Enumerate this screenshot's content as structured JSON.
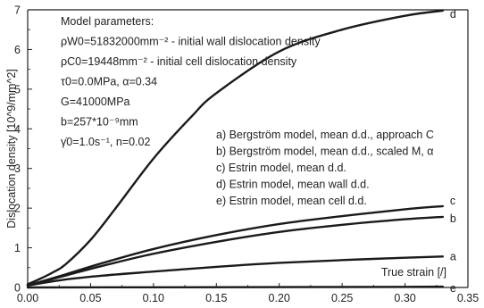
{
  "chart_data": {
    "type": "line",
    "xlabel": "True strain [/]",
    "ylabel": "Dislocation density [10^9/mm^2]",
    "xlim": [
      0.0,
      0.35
    ],
    "ylim": [
      0,
      7
    ],
    "x_ticks": [
      "0.00",
      "0.05",
      "0.10",
      "0.15",
      "0.20",
      "0.25",
      "0.30",
      "0.35"
    ],
    "y_ticks": [
      "0",
      "1",
      "2",
      "3",
      "4",
      "5",
      "6",
      "7"
    ],
    "grid": false,
    "legend_position": "center-right",
    "parameters": [
      "Model parameters:",
      "ρW0=51832000mm⁻² - initial wall dislocation density",
      "ρC0=19448mm⁻² - initial cell dislocation density",
      "τ0=0.0MPa, α=0.34",
      "G=41000MPa",
      "b=257*10⁻⁹mm",
      "γ̇0=1.0s⁻¹, n=0.02"
    ],
    "series": [
      {
        "name": "a) Bergström model, mean d.d., approach C",
        "label": "a",
        "x": [
          0.0,
          0.03,
          0.06,
          0.1,
          0.15,
          0.2,
          0.25,
          0.3,
          0.33
        ],
        "y": [
          0.05,
          0.2,
          0.3,
          0.4,
          0.52,
          0.62,
          0.69,
          0.75,
          0.78
        ]
      },
      {
        "name": "b) Bergström model, mean d.d., scaled M, α",
        "label": "b",
        "x": [
          0.0,
          0.03,
          0.06,
          0.1,
          0.15,
          0.2,
          0.25,
          0.3,
          0.33
        ],
        "y": [
          0.05,
          0.3,
          0.55,
          0.85,
          1.15,
          1.4,
          1.58,
          1.72,
          1.78
        ]
      },
      {
        "name": "c) Estrin model, mean d.d.",
        "label": "c",
        "x": [
          0.0,
          0.03,
          0.06,
          0.1,
          0.15,
          0.2,
          0.25,
          0.3,
          0.33
        ],
        "y": [
          0.05,
          0.33,
          0.62,
          0.97,
          1.32,
          1.6,
          1.8,
          1.97,
          2.05
        ]
      },
      {
        "name": "d) Estrin model, mean wall d.d.",
        "label": "d",
        "x": [
          0.0,
          0.01,
          0.02,
          0.03,
          0.05,
          0.07,
          0.1,
          0.13,
          0.15,
          0.2,
          0.25,
          0.3,
          0.33
        ],
        "y": [
          0.08,
          0.22,
          0.38,
          0.58,
          1.2,
          2.0,
          3.25,
          4.3,
          4.9,
          5.95,
          6.5,
          6.85,
          6.98
        ]
      },
      {
        "name": "e) Estrin model, mean cell d.d.",
        "label": "e",
        "x": [
          0.0,
          0.1,
          0.2,
          0.3,
          0.33
        ],
        "y": [
          0.0,
          0.005,
          0.01,
          0.015,
          0.02
        ]
      }
    ]
  }
}
